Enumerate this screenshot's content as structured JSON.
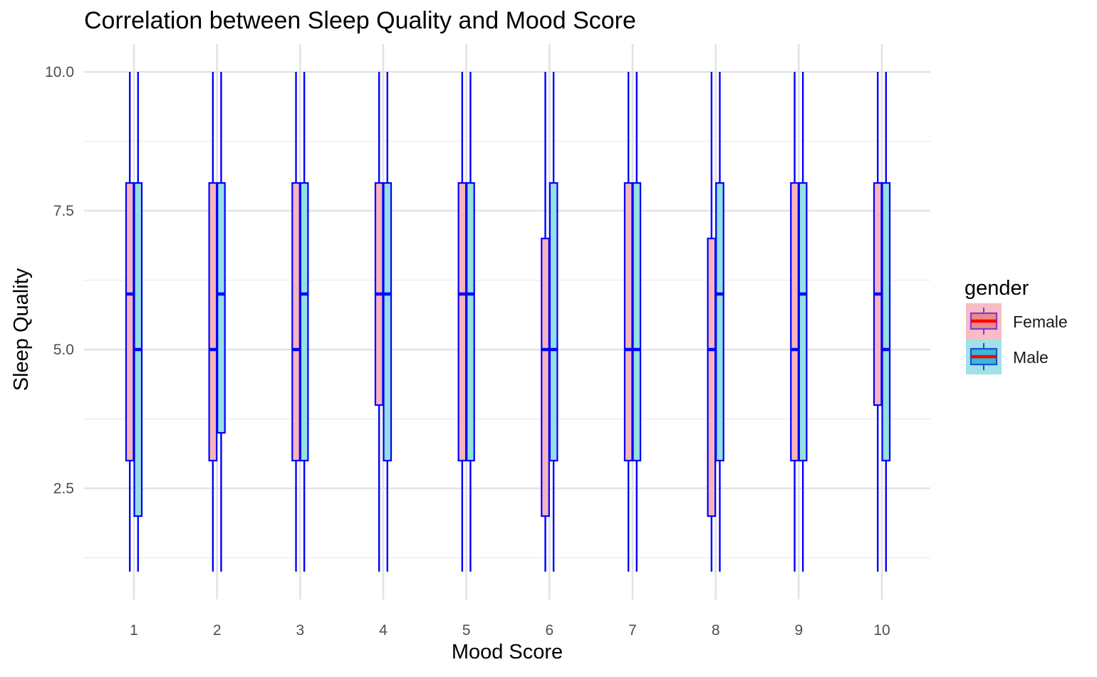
{
  "chart_data": {
    "type": "boxplot",
    "title": "Correlation between Sleep Quality and Mood Score",
    "xlabel": "Mood Score",
    "ylabel": "Sleep Quality",
    "categories": [
      "1",
      "2",
      "3",
      "4",
      "5",
      "6",
      "7",
      "8",
      "9",
      "10"
    ],
    "y_ticks": [
      "2.5",
      "5.0",
      "7.5",
      "10.0"
    ],
    "ylim": [
      0.5,
      10.5
    ],
    "grid": true,
    "legend": {
      "title": "gender",
      "position": "right"
    },
    "box_outline_color": "#0000FF",
    "median_color": "#0000FF",
    "series": [
      {
        "name": "Female",
        "fill": "#F8B4BE",
        "boxes": [
          {
            "min": 1,
            "q1": 3,
            "median": 6,
            "q3": 8,
            "max": 10
          },
          {
            "min": 1,
            "q1": 3,
            "median": 5,
            "q3": 8,
            "max": 10
          },
          {
            "min": 1,
            "q1": 3,
            "median": 5,
            "q3": 8,
            "max": 10
          },
          {
            "min": 1,
            "q1": 4,
            "median": 6,
            "q3": 8,
            "max": 10
          },
          {
            "min": 1,
            "q1": 3,
            "median": 6,
            "q3": 8,
            "max": 10
          },
          {
            "min": 1,
            "q1": 2,
            "median": 5,
            "q3": 7,
            "max": 10
          },
          {
            "min": 1,
            "q1": 3,
            "median": 5,
            "q3": 8,
            "max": 10
          },
          {
            "min": 1,
            "q1": 2,
            "median": 5,
            "q3": 7,
            "max": 10
          },
          {
            "min": 1,
            "q1": 3,
            "median": 5,
            "q3": 8,
            "max": 10
          },
          {
            "min": 1,
            "q1": 4,
            "median": 6,
            "q3": 8,
            "max": 10
          }
        ]
      },
      {
        "name": "Male",
        "fill": "#96DFE2",
        "boxes": [
          {
            "min": 1,
            "q1": 2,
            "median": 5,
            "q3": 8,
            "max": 10
          },
          {
            "min": 1,
            "q1": 3.5,
            "median": 6,
            "q3": 8,
            "max": 10
          },
          {
            "min": 1,
            "q1": 3,
            "median": 6,
            "q3": 8,
            "max": 10
          },
          {
            "min": 1,
            "q1": 3,
            "median": 6,
            "q3": 8,
            "max": 10
          },
          {
            "min": 1,
            "q1": 3,
            "median": 6,
            "q3": 8,
            "max": 10
          },
          {
            "min": 1,
            "q1": 3,
            "median": 5,
            "q3": 8,
            "max": 10
          },
          {
            "min": 1,
            "q1": 3,
            "median": 5,
            "q3": 8,
            "max": 10
          },
          {
            "min": 1,
            "q1": 3,
            "median": 6,
            "q3": 8,
            "max": 10
          },
          {
            "min": 1,
            "q1": 3,
            "median": 6,
            "q3": 8,
            "max": 10
          },
          {
            "min": 1,
            "q1": 3,
            "median": 5,
            "q3": 8,
            "max": 10
          }
        ]
      }
    ]
  }
}
